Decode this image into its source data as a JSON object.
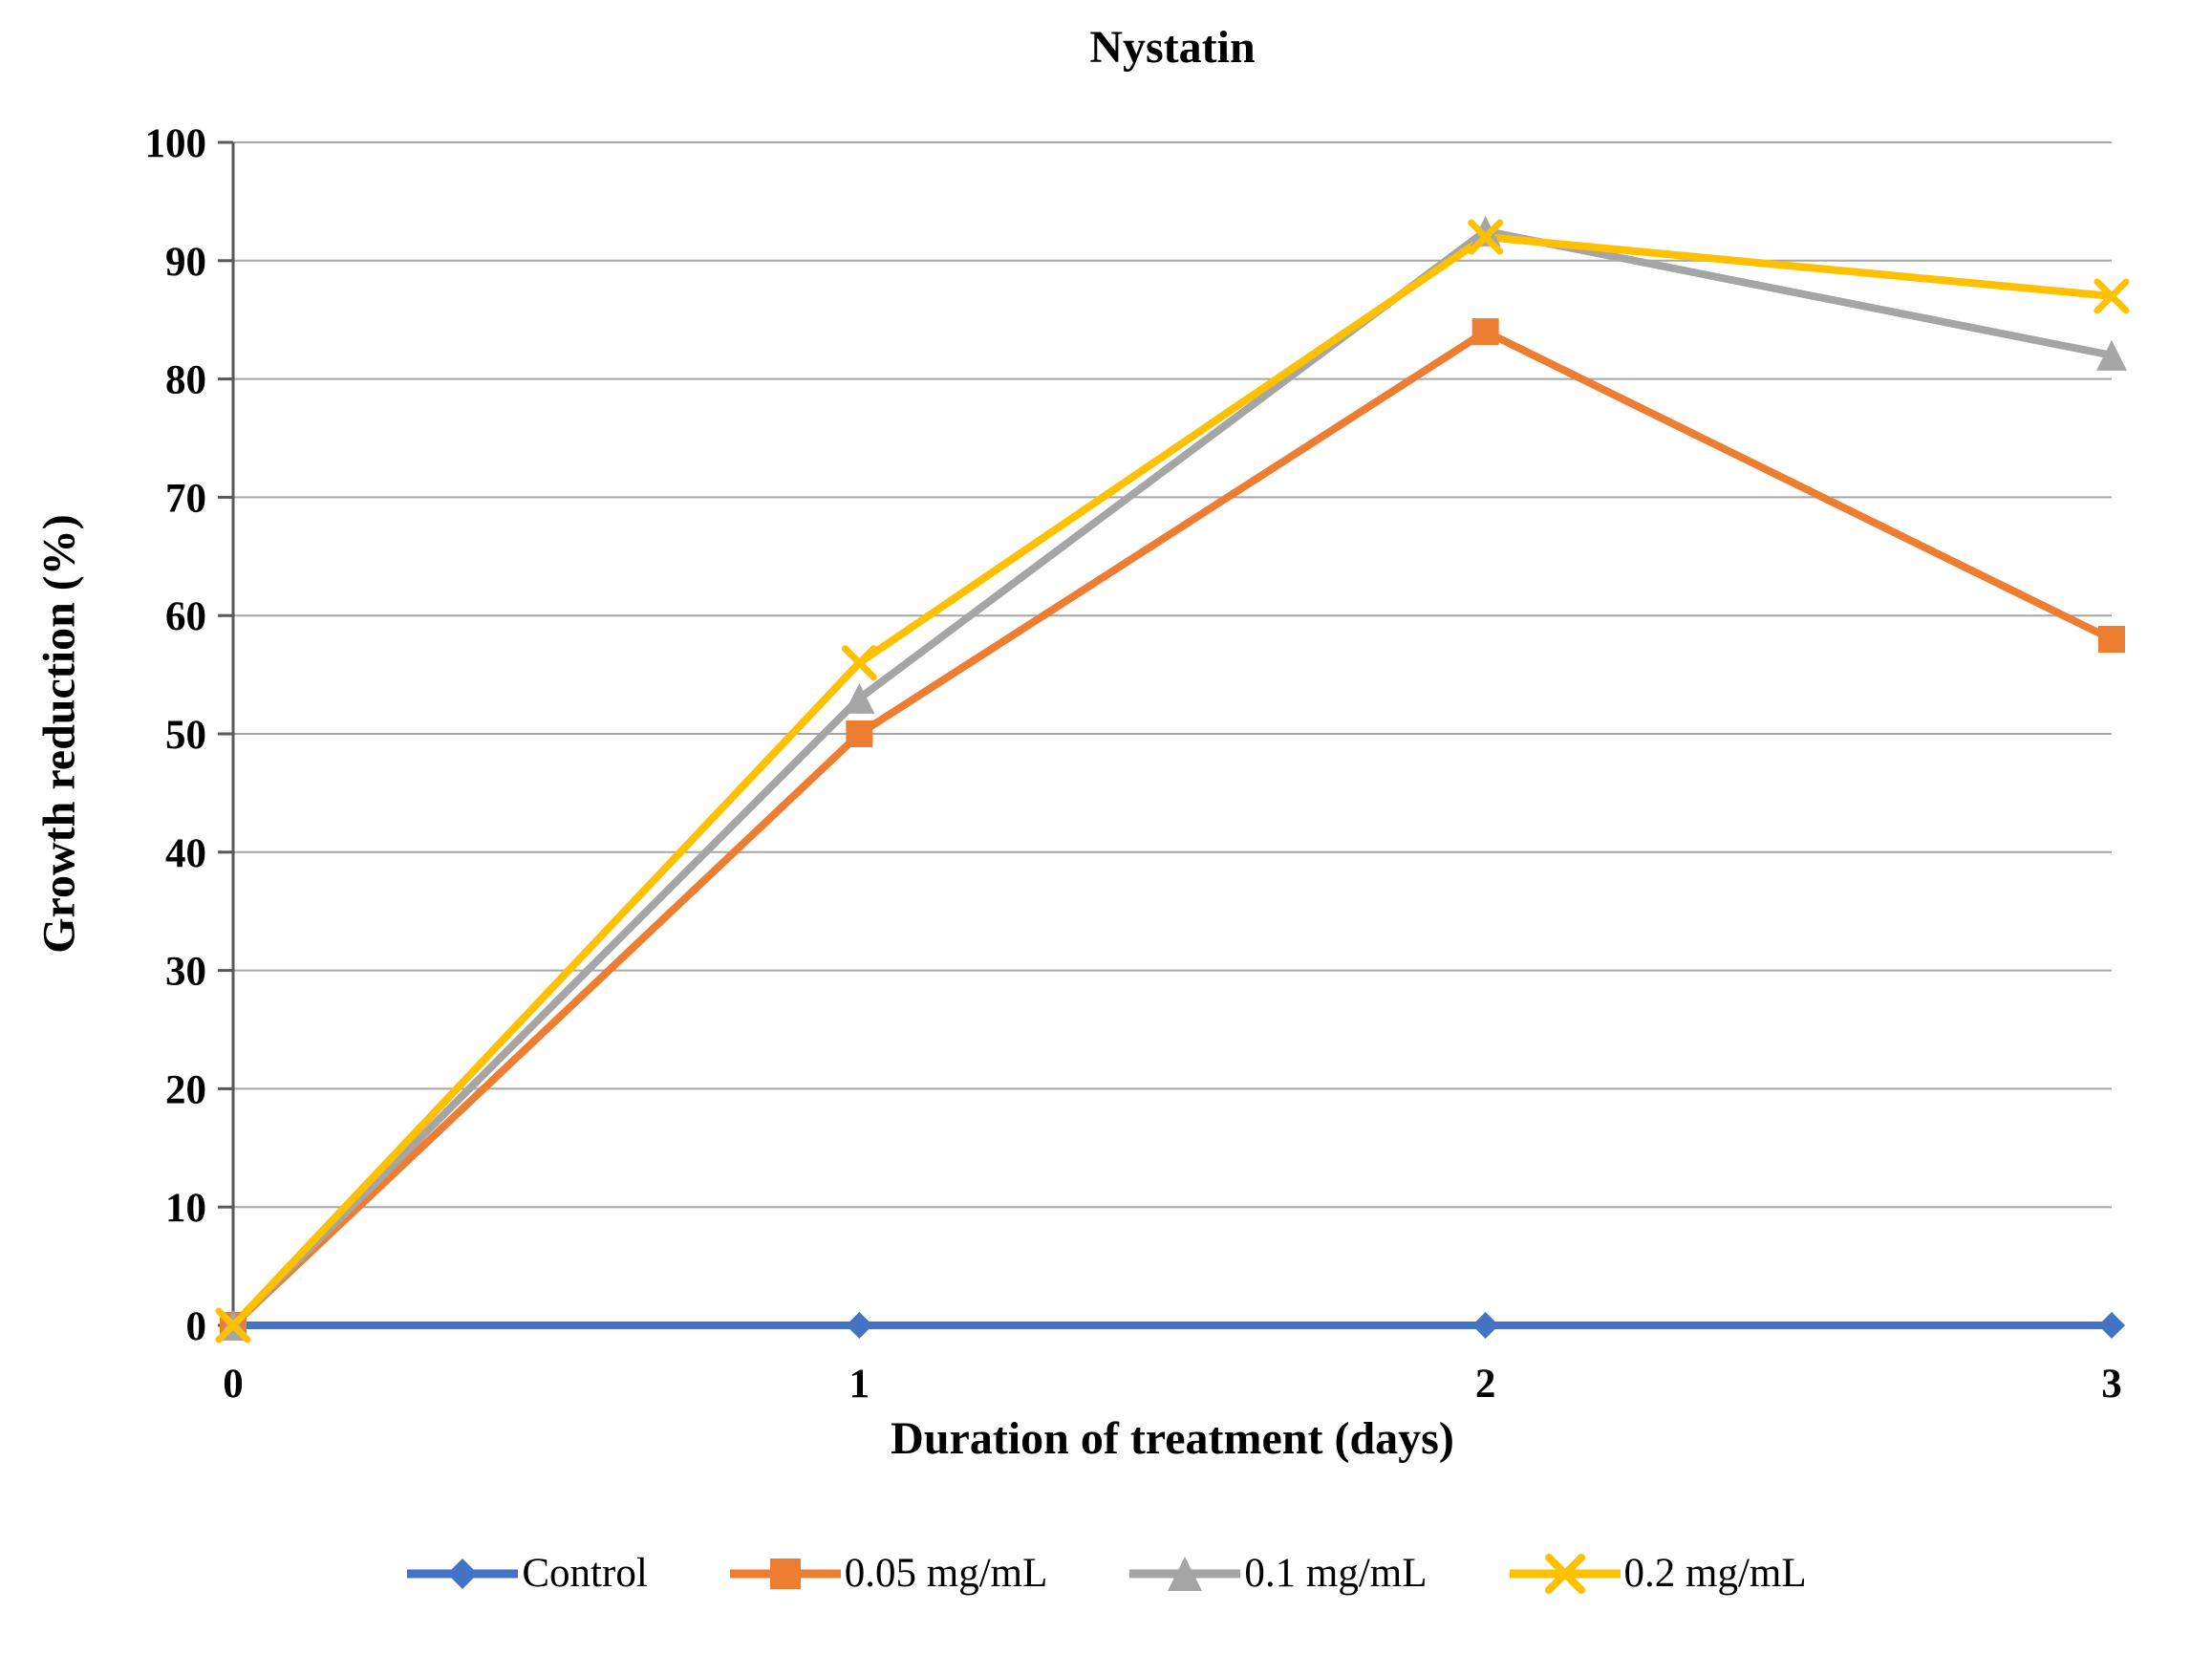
{
  "chart_data": {
    "type": "line",
    "title": "Nystatin",
    "xlabel": "Duration of treatment (days)",
    "ylabel": "Growth reduction (%)",
    "x": [
      0,
      1,
      2,
      3
    ],
    "xticks": [
      0,
      1,
      2,
      3
    ],
    "xlim": [
      0,
      3
    ],
    "ylim": [
      0,
      100
    ],
    "yticks": [
      0,
      10,
      20,
      30,
      40,
      50,
      60,
      70,
      80,
      90,
      100
    ],
    "grid": "horizontal",
    "legend_position": "bottom",
    "series": [
      {
        "name": "Control",
        "color": "#4472C4",
        "marker": "diamond",
        "values": [
          0,
          0,
          0,
          0
        ]
      },
      {
        "name": "0.05 mg/mL",
        "color": "#ED7D31",
        "marker": "square",
        "values": [
          0,
          50,
          84,
          58
        ]
      },
      {
        "name": "0.1 mg/mL",
        "color": "#A5A5A5",
        "marker": "triangle",
        "values": [
          0,
          53,
          92.5,
          82
        ]
      },
      {
        "name": "0.2 mg/mL",
        "color": "#FFC000",
        "marker": "x",
        "values": [
          0,
          56,
          92,
          87
        ]
      }
    ],
    "colors": {
      "gridline": "#A6A6A6",
      "axis": "#595959",
      "tick_label": "#000000"
    }
  }
}
